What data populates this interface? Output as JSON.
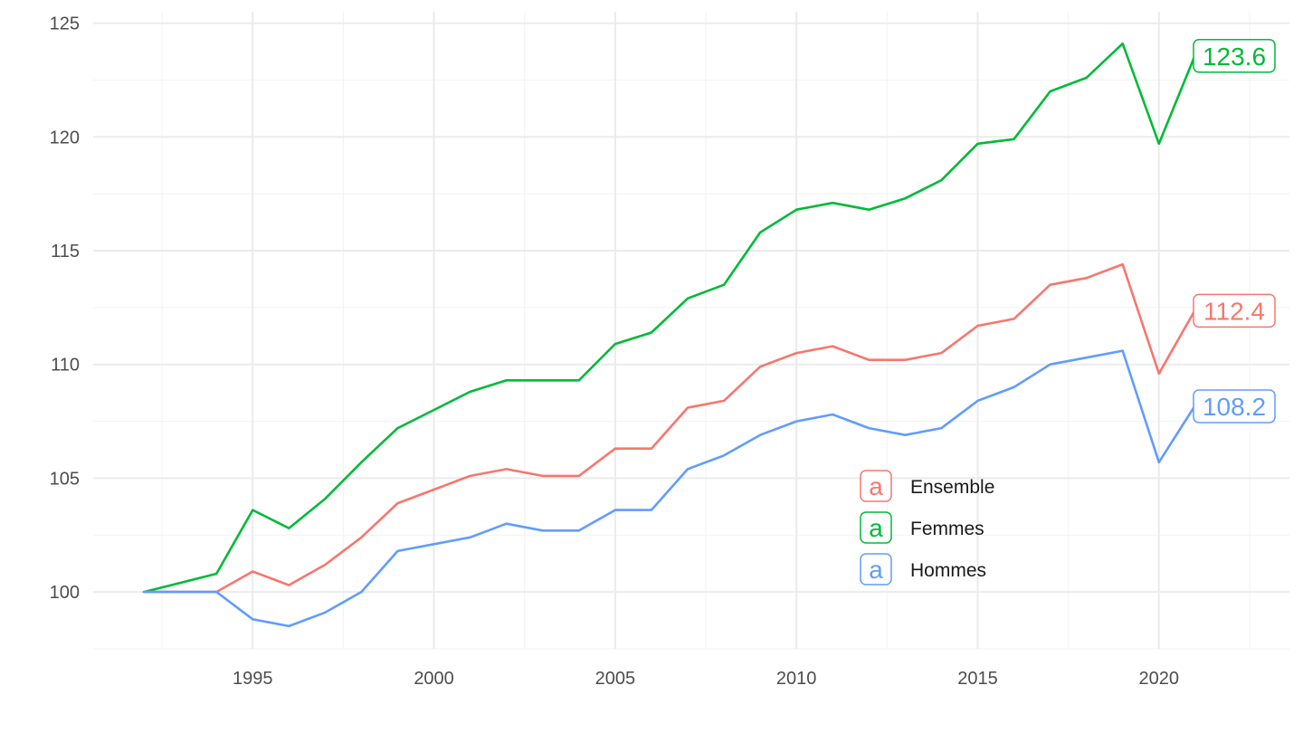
{
  "chart_data": {
    "type": "line",
    "title": "",
    "xlabel": "",
    "ylabel": "",
    "xlim": [
      1990.6,
      2023.6
    ],
    "ylim": [
      97.5,
      125.5
    ],
    "x_ticks": [
      1995,
      2000,
      2005,
      2010,
      2015,
      2020
    ],
    "y_ticks": [
      100,
      105,
      110,
      115,
      120,
      125
    ],
    "grid": true,
    "legend": {
      "position": "inside-bottom-center",
      "key_glyph": "a"
    },
    "x": [
      1992,
      1993,
      1994,
      1995,
      1996,
      1997,
      1998,
      1999,
      2000,
      2001,
      2002,
      2003,
      2004,
      2005,
      2006,
      2007,
      2008,
      2009,
      2010,
      2011,
      2012,
      2013,
      2014,
      2015,
      2016,
      2017,
      2018,
      2019,
      2020,
      2021
    ],
    "series": [
      {
        "name": "Ensemble",
        "color": "#F8766D",
        "values": [
          100.0,
          100.0,
          100.0,
          100.9,
          100.3,
          101.2,
          102.4,
          103.9,
          104.5,
          105.1,
          105.4,
          105.1,
          105.1,
          106.3,
          106.3,
          108.1,
          108.4,
          109.9,
          110.5,
          110.8,
          110.2,
          110.2,
          110.5,
          111.7,
          112.0,
          113.5,
          113.8,
          114.4,
          109.6,
          112.4
        ],
        "end_label": "112.4"
      },
      {
        "name": "Femmes",
        "color": "#00BA38",
        "values": [
          100.0,
          100.4,
          100.8,
          103.6,
          102.8,
          104.1,
          105.7,
          107.2,
          108.0,
          108.8,
          109.3,
          109.3,
          109.3,
          110.9,
          111.4,
          112.9,
          113.5,
          115.8,
          116.8,
          117.1,
          116.8,
          117.3,
          118.1,
          119.7,
          119.9,
          122.0,
          122.6,
          124.1,
          119.7,
          123.6
        ],
        "end_label": "123.6"
      },
      {
        "name": "Hommes",
        "color": "#619CFF",
        "values": [
          100.0,
          100.0,
          100.0,
          98.8,
          98.5,
          99.1,
          100.0,
          101.8,
          102.1,
          102.4,
          103.0,
          102.7,
          102.7,
          103.6,
          103.6,
          105.4,
          106.0,
          106.9,
          107.5,
          107.8,
          107.2,
          106.9,
          107.2,
          108.4,
          109.0,
          110.0,
          110.3,
          110.6,
          105.7,
          108.2
        ],
        "end_label": "108.2"
      }
    ]
  }
}
